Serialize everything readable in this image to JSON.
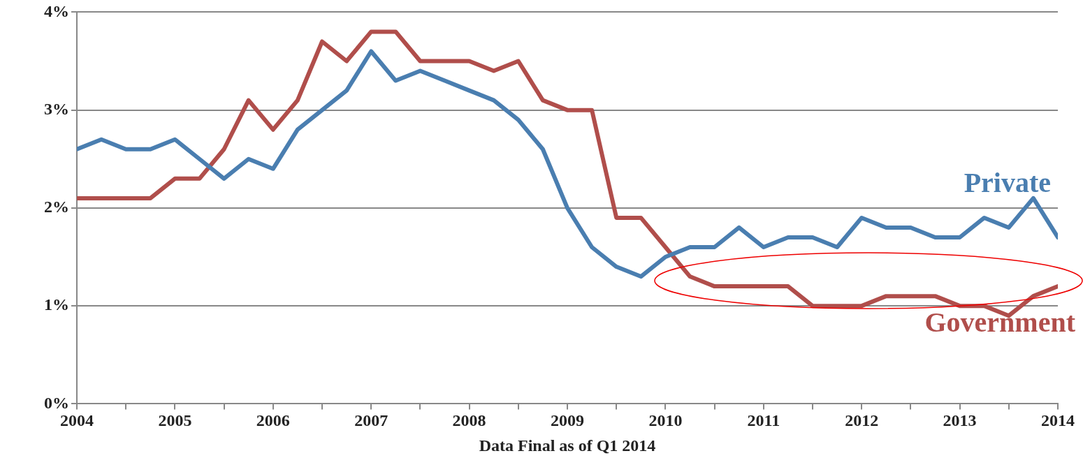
{
  "chart_data": {
    "type": "line",
    "xlabel": "Data Final as of Q1 2014",
    "x": [
      2004,
      2004.25,
      2004.5,
      2004.75,
      2005,
      2005.25,
      2005.5,
      2005.75,
      2006,
      2006.25,
      2006.5,
      2006.75,
      2007,
      2007.25,
      2007.5,
      2007.75,
      2008,
      2008.25,
      2008.5,
      2008.75,
      2009,
      2009.25,
      2009.5,
      2009.75,
      2010,
      2010.25,
      2010.5,
      2010.75,
      2011,
      2011.25,
      2011.5,
      2011.75,
      2012,
      2012.25,
      2012.5,
      2012.75,
      2013,
      2013.25,
      2013.5,
      2013.75,
      2014
    ],
    "series": [
      {
        "name": "Private",
        "color": "#4a7eb0",
        "values": [
          2.6,
          2.7,
          2.6,
          2.6,
          2.7,
          2.5,
          2.3,
          2.5,
          2.4,
          2.8,
          3.0,
          3.2,
          3.6,
          3.3,
          3.4,
          3.3,
          3.2,
          3.1,
          2.9,
          2.6,
          2.0,
          1.6,
          1.4,
          1.3,
          1.5,
          1.6,
          1.6,
          1.8,
          1.6,
          1.7,
          1.7,
          1.6,
          1.9,
          1.8,
          1.8,
          1.7,
          1.7,
          1.9,
          1.8,
          2.1,
          1.7
        ]
      },
      {
        "name": "Government",
        "color": "#b04e4b",
        "values": [
          2.1,
          2.1,
          2.1,
          2.1,
          2.3,
          2.3,
          2.6,
          3.1,
          2.8,
          3.1,
          3.7,
          3.5,
          3.8,
          3.8,
          3.5,
          3.5,
          3.5,
          3.4,
          3.5,
          3.1,
          3.0,
          3.0,
          1.9,
          1.9,
          1.6,
          1.3,
          1.2,
          1.2,
          1.2,
          1.2,
          1.0,
          1.0,
          1.0,
          1.1,
          1.1,
          1.1,
          1.0,
          1.0,
          0.9,
          1.1,
          1.2
        ]
      }
    ],
    "xlim": [
      2004,
      2014
    ],
    "xticks": [
      2004,
      {
        "value": 2004.5,
        "label": null
      },
      2005,
      {
        "value": 2005.5,
        "label": null
      },
      2006,
      {
        "value": 2006.5,
        "label": null
      },
      2007,
      {
        "value": 2007.5,
        "label": null
      },
      2008,
      {
        "value": 2008.5,
        "label": null
      },
      2009,
      {
        "value": 2009.5,
        "label": null
      },
      2010,
      {
        "value": 2010.5,
        "label": null
      },
      2011,
      {
        "value": 2011.5,
        "label": null
      },
      2012,
      {
        "value": 2012.5,
        "label": null
      },
      2013,
      {
        "value": 2013.5,
        "label": null
      },
      2014
    ],
    "ylim": [
      0,
      4
    ],
    "yticks": [
      {
        "value": 0,
        "label": "0%"
      },
      {
        "value": 1,
        "label": "1%"
      },
      {
        "value": 2,
        "label": "2%"
      },
      {
        "value": 3,
        "label": "3%"
      },
      {
        "value": 4,
        "label": "4%"
      }
    ],
    "grid": "y",
    "legend": false,
    "marker": "none",
    "line_style": "solid"
  }
}
